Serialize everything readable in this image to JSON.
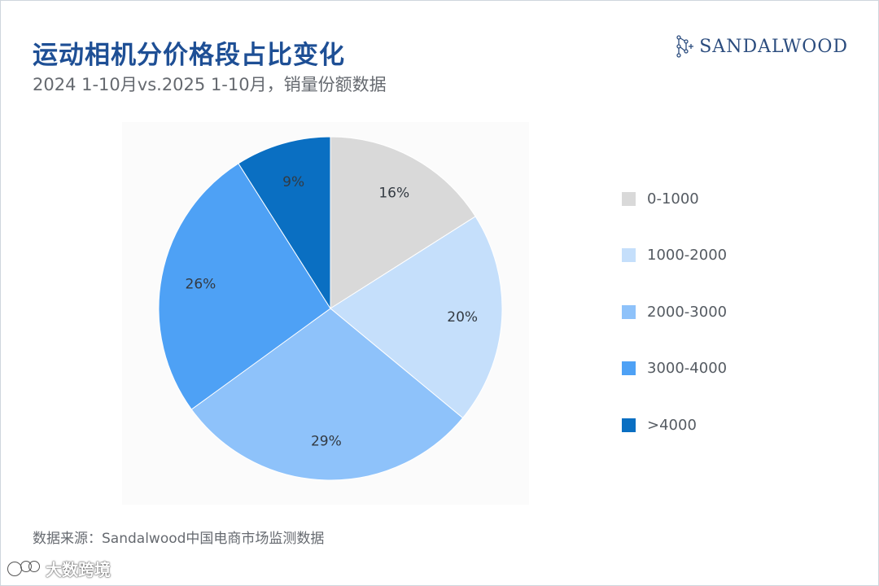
{
  "header": {
    "title": "运动相机分价格段占比变化",
    "subtitle": "2024 1-10月vs.2025 1-10月，销量份额数据"
  },
  "logo": {
    "text": "SANDALWOOD",
    "icon": "network-logo-icon",
    "color": "#2b4c7e"
  },
  "footer": {
    "source": "数据来源：Sandalwood中国电商市场监测数据"
  },
  "watermark": {
    "text": "大数跨境",
    "icon": "watermark-logo-icon"
  },
  "chart_data": {
    "type": "pie",
    "title": "",
    "categories": [
      "0-1000",
      "1000-2000",
      "2000-3000",
      "3000-4000",
      ">4000"
    ],
    "values": [
      16,
      20,
      29,
      26,
      9
    ],
    "labels": [
      "16%",
      "20%",
      "29%",
      "26%",
      "9%"
    ],
    "colors": [
      "#d9d9d9",
      "#c5dffb",
      "#8ec2fa",
      "#4ea1f5",
      "#0a6fc2"
    ],
    "start": "12 o'clock",
    "direction": "clockwise",
    "legend": "right"
  }
}
